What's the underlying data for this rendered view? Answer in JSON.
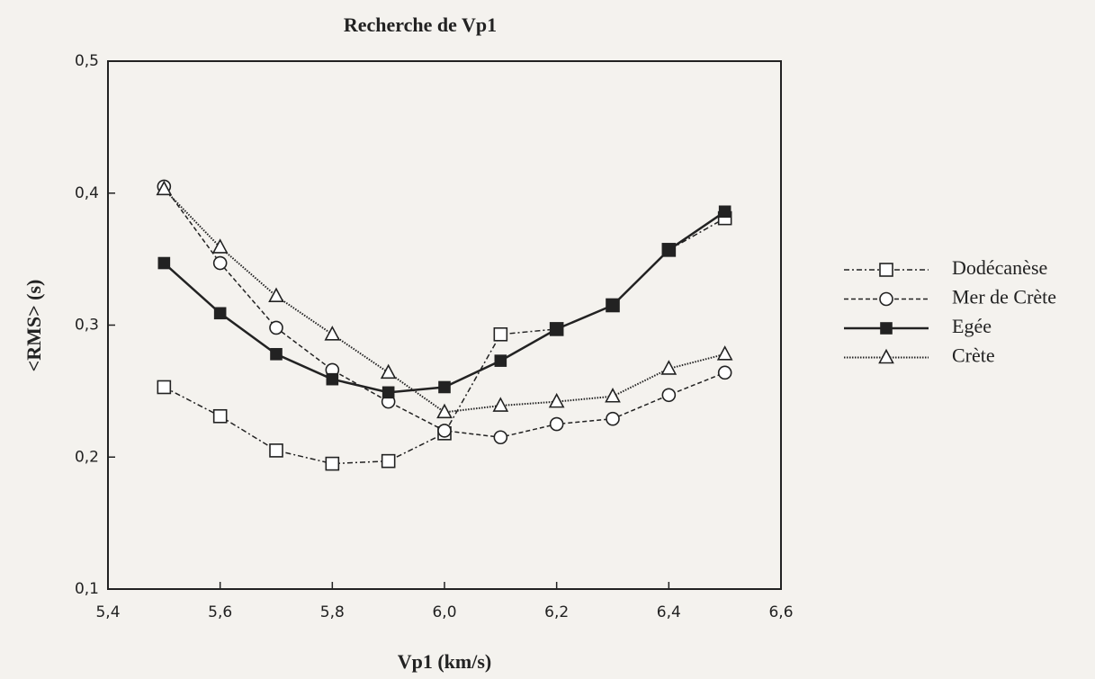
{
  "chart_data": {
    "type": "line",
    "title": "Recherche de Vp1",
    "xlabel": "Vp1 (km/s)",
    "ylabel": "<RMS>  (s)",
    "x": [
      5.5,
      5.6,
      5.7,
      5.8,
      5.9,
      6.0,
      6.1,
      6.2,
      6.3,
      6.4,
      6.5
    ],
    "xlim": [
      5.4,
      6.6
    ],
    "xticks": [
      {
        "value": 5.4,
        "label": "5,4"
      },
      {
        "value": 5.6,
        "label": "5,6"
      },
      {
        "value": 5.8,
        "label": "5,8"
      },
      {
        "value": 6.0,
        "label": "6,0"
      },
      {
        "value": 6.2,
        "label": "6,2"
      },
      {
        "value": 6.4,
        "label": "6,4"
      },
      {
        "value": 6.6,
        "label": "6,6"
      }
    ],
    "ylim": [
      0.1,
      0.5
    ],
    "yticks": [
      {
        "value": 0.1,
        "label": "0,1"
      },
      {
        "value": 0.2,
        "label": "0,2"
      },
      {
        "value": 0.3,
        "label": "0,3"
      },
      {
        "value": 0.4,
        "label": "0,4"
      },
      {
        "value": 0.5,
        "label": "0,5"
      }
    ],
    "legend": "right",
    "series": [
      {
        "name": "Dodécanèse",
        "color": "#222222",
        "dash": "dash-dot",
        "marker": "open-square",
        "values": [
          0.253,
          0.231,
          0.205,
          0.195,
          0.197,
          0.218,
          0.293,
          0.297,
          0.315,
          0.357,
          0.381
        ]
      },
      {
        "name": "Mer de Crète",
        "color": "#222222",
        "dash": "dashed",
        "marker": "open-circle",
        "values": [
          0.405,
          0.347,
          0.298,
          0.266,
          0.242,
          0.22,
          0.215,
          0.225,
          0.229,
          0.247,
          0.264
        ]
      },
      {
        "name": "Egée",
        "color": "#222222",
        "dash": "solid",
        "marker": "filled-square",
        "values": [
          0.347,
          0.309,
          0.278,
          0.259,
          0.249,
          0.253,
          0.273,
          0.297,
          0.315,
          0.357,
          0.386
        ]
      },
      {
        "name": "Crète",
        "color": "#222222",
        "dash": "dotted",
        "marker": "open-triangle",
        "values": [
          0.403,
          0.359,
          0.322,
          0.293,
          0.264,
          0.234,
          0.239,
          0.242,
          0.246,
          0.267,
          0.278
        ]
      }
    ]
  }
}
